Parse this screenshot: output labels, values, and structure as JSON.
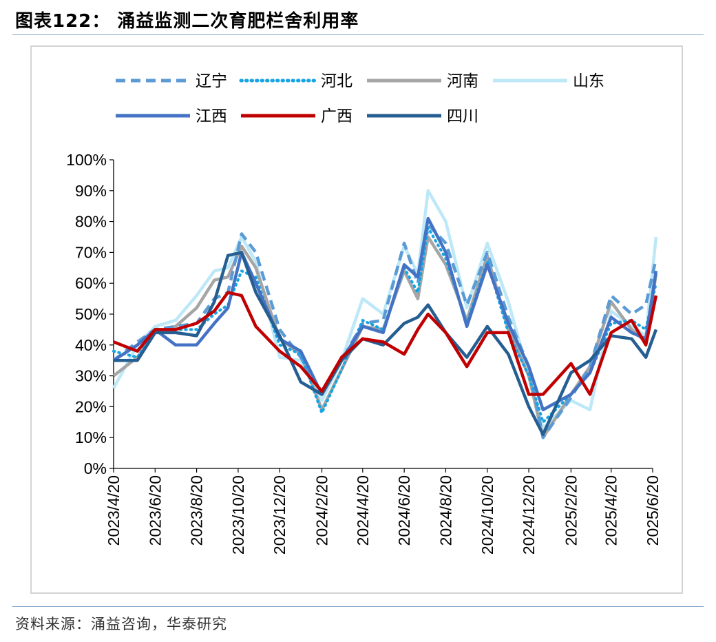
{
  "title": "图表122： 涌益监测二次育肥栏舍利用率",
  "source": "资料来源：涌益咨询，华泰研究",
  "chart_data": {
    "type": "line",
    "title": "",
    "xlabel": "",
    "ylabel": "",
    "ylim": [
      0,
      100
    ],
    "y_ticks": [
      "0%",
      "10%",
      "20%",
      "30%",
      "40%",
      "50%",
      "60%",
      "70%",
      "80%",
      "90%",
      "100%"
    ],
    "x_ticks": [
      "2023/4/20",
      "2023/6/20",
      "2023/8/20",
      "2023/10/20",
      "2023/12/20",
      "2024/2/20",
      "2024/4/20",
      "2024/6/20",
      "2024/8/20",
      "2024/10/20",
      "2024/12/20",
      "2025/2/20",
      "2025/4/20",
      "2025/6/20"
    ],
    "grid": false,
    "legend_position": "top",
    "x_start": "2023-04-20",
    "x_end": "2025-06-20",
    "series": [
      {
        "name": "辽宁",
        "color": "#5b9bd5",
        "style": "dashed",
        "x": [
          "2023-04-20",
          "2023-05-25",
          "2023-06-20",
          "2023-07-20",
          "2023-08-20",
          "2023-09-15",
          "2023-10-05",
          "2023-10-25",
          "2023-11-15",
          "2023-12-20",
          "2024-01-20",
          "2024-02-20",
          "2024-03-20",
          "2024-04-20",
          "2024-05-20",
          "2024-06-20",
          "2024-07-10",
          "2024-07-25",
          "2024-08-20",
          "2024-09-20",
          "2024-10-20",
          "2024-11-20",
          "2024-12-20",
          "2025-01-10",
          "2025-02-20",
          "2025-03-20",
          "2025-04-20",
          "2025-05-20",
          "2025-06-10",
          "2025-06-25"
        ],
        "values": [
          35,
          41,
          45,
          46,
          47,
          55,
          57,
          76,
          70,
          45,
          36,
          24,
          35,
          47,
          48,
          73,
          60,
          79,
          73,
          53,
          70,
          49,
          33,
          10,
          23,
          33,
          56,
          50,
          53,
          68
        ]
      },
      {
        "name": "河北",
        "color": "#16a4e3",
        "style": "dotted",
        "x": [
          "2023-04-20",
          "2023-05-25",
          "2023-06-20",
          "2023-07-20",
          "2023-08-20",
          "2023-09-15",
          "2023-10-05",
          "2023-10-25",
          "2023-11-15",
          "2023-12-20",
          "2024-01-20",
          "2024-02-20",
          "2024-03-20",
          "2024-04-20",
          "2024-05-20",
          "2024-06-20",
          "2024-07-10",
          "2024-07-25",
          "2024-08-20",
          "2024-09-20",
          "2024-10-20",
          "2024-11-20",
          "2024-12-20",
          "2025-01-10",
          "2025-02-20",
          "2025-03-20",
          "2025-04-20",
          "2025-05-20",
          "2025-06-10",
          "2025-06-25"
        ],
        "values": [
          38,
          36,
          45,
          45,
          45,
          50,
          53,
          64,
          62,
          40,
          37,
          18,
          32,
          48,
          45,
          65,
          57,
          78,
          68,
          47,
          67,
          44,
          30,
          15,
          24,
          31,
          47,
          48,
          45,
          60
        ]
      },
      {
        "name": "河南",
        "color": "#a5a5a5",
        "style": "solid",
        "x": [
          "2023-04-20",
          "2023-05-25",
          "2023-06-20",
          "2023-07-20",
          "2023-08-20",
          "2023-09-15",
          "2023-10-05",
          "2023-10-25",
          "2023-11-15",
          "2023-12-20",
          "2024-01-20",
          "2024-02-20",
          "2024-03-20",
          "2024-04-20",
          "2024-05-20",
          "2024-06-20",
          "2024-07-10",
          "2024-07-25",
          "2024-08-20",
          "2024-09-20",
          "2024-10-20",
          "2024-11-20",
          "2024-12-20",
          "2025-01-10",
          "2025-02-20",
          "2025-03-20",
          "2025-04-20",
          "2025-05-20",
          "2025-06-10",
          "2025-06-25"
        ],
        "values": [
          30,
          36,
          44,
          46,
          52,
          61,
          62,
          72,
          65,
          42,
          37,
          19,
          32,
          46,
          45,
          64,
          55,
          75,
          66,
          48,
          69,
          45,
          30,
          10,
          24,
          33,
          54,
          45,
          41,
          63
        ]
      },
      {
        "name": "山东",
        "color": "#bde8f7",
        "style": "solid",
        "x": [
          "2023-04-20",
          "2023-05-25",
          "2023-06-20",
          "2023-07-20",
          "2023-08-20",
          "2023-09-15",
          "2023-10-05",
          "2023-10-25",
          "2023-11-15",
          "2023-12-20",
          "2024-01-20",
          "2024-02-20",
          "2024-03-20",
          "2024-04-20",
          "2024-05-20",
          "2024-06-20",
          "2024-07-10",
          "2024-07-25",
          "2024-08-20",
          "2024-09-20",
          "2024-10-20",
          "2024-11-20",
          "2024-12-20",
          "2025-01-10",
          "2025-02-20",
          "2025-03-20",
          "2025-04-20",
          "2025-05-20",
          "2025-06-10",
          "2025-06-25"
        ],
        "values": [
          26,
          40,
          46,
          48,
          56,
          64,
          65,
          75,
          67,
          36,
          35,
          22,
          35,
          55,
          50,
          72,
          63,
          90,
          80,
          52,
          73,
          54,
          30,
          13,
          22,
          19,
          51,
          46,
          43,
          75
        ]
      },
      {
        "name": "江西",
        "color": "#4472c4",
        "style": "solid",
        "x": [
          "2023-04-20",
          "2023-05-25",
          "2023-06-20",
          "2023-07-20",
          "2023-08-20",
          "2023-09-15",
          "2023-10-05",
          "2023-10-25",
          "2023-11-15",
          "2023-12-20",
          "2024-01-20",
          "2024-02-20",
          "2024-03-20",
          "2024-04-20",
          "2024-05-20",
          "2024-06-20",
          "2024-07-10",
          "2024-07-25",
          "2024-08-20",
          "2024-09-20",
          "2024-10-20",
          "2024-11-20",
          "2024-12-20",
          "2025-01-10",
          "2025-02-20",
          "2025-03-20",
          "2025-04-20",
          "2025-05-20",
          "2025-06-10",
          "2025-06-25"
        ],
        "values": [
          35,
          40,
          45,
          40,
          40,
          47,
          52,
          70,
          60,
          42,
          38,
          24,
          35,
          46,
          44,
          66,
          62,
          81,
          70,
          46,
          66,
          47,
          33,
          19,
          24,
          31,
          49,
          44,
          42,
          64
        ]
      },
      {
        "name": "广西",
        "color": "#c00000",
        "style": "solid",
        "x": [
          "2023-04-20",
          "2023-05-25",
          "2023-06-20",
          "2023-07-20",
          "2023-08-20",
          "2023-09-15",
          "2023-10-05",
          "2023-10-25",
          "2023-11-15",
          "2023-12-20",
          "2024-01-20",
          "2024-02-20",
          "2024-03-20",
          "2024-04-20",
          "2024-05-20",
          "2024-06-20",
          "2024-07-10",
          "2024-07-25",
          "2024-08-20",
          "2024-09-20",
          "2024-10-20",
          "2024-11-20",
          "2024-12-20",
          "2025-01-10",
          "2025-02-20",
          "2025-03-20",
          "2025-04-20",
          "2025-05-20",
          "2025-06-10",
          "2025-06-25"
        ],
        "values": [
          41,
          38,
          45,
          45,
          47,
          51,
          57,
          56,
          46,
          38,
          33,
          25,
          36,
          42,
          41,
          37,
          45,
          50,
          44,
          33,
          44,
          44,
          24,
          24,
          34,
          24,
          44,
          48,
          40,
          56
        ]
      },
      {
        "name": "四川",
        "color": "#255e91",
        "style": "solid",
        "x": [
          "2023-04-20",
          "2023-05-25",
          "2023-06-20",
          "2023-07-20",
          "2023-08-20",
          "2023-09-15",
          "2023-10-05",
          "2023-10-25",
          "2023-11-15",
          "2023-12-20",
          "2024-01-20",
          "2024-02-20",
          "2024-03-20",
          "2024-04-20",
          "2024-05-20",
          "2024-06-20",
          "2024-07-10",
          "2024-07-25",
          "2024-08-20",
          "2024-09-20",
          "2024-10-20",
          "2024-11-20",
          "2024-12-20",
          "2025-01-10",
          "2025-02-20",
          "2025-03-20",
          "2025-04-20",
          "2025-05-20",
          "2025-06-10",
          "2025-06-25"
        ],
        "values": [
          35,
          35,
          44,
          44,
          43,
          54,
          69,
          70,
          57,
          43,
          28,
          24,
          35,
          42,
          40,
          47,
          49,
          53,
          44,
          36,
          46,
          37,
          20,
          11,
          31,
          35,
          43,
          42,
          36,
          45
        ]
      }
    ]
  }
}
